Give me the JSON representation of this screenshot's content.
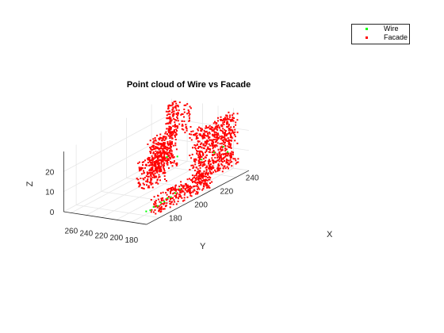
{
  "chart_data": {
    "type": "scatter",
    "projection": "3d",
    "title": "Point cloud of Wire vs Facade",
    "xlabel": "X",
    "ylabel": "Y",
    "zlabel": "Z",
    "xlim": [
      170,
      250
    ],
    "ylim": [
      160,
      270
    ],
    "zlim": [
      0,
      30
    ],
    "xticks": [
      180,
      200,
      220,
      240
    ],
    "yticks": [
      180,
      200,
      220,
      240,
      260
    ],
    "zticks": [
      0,
      10,
      20
    ],
    "grid": true,
    "legend_position": "top-right",
    "series": [
      {
        "name": "Wire",
        "color": "#00ff00",
        "marker": "point",
        "points": [
          {
            "x": 178,
            "y": 174,
            "z": 3
          },
          {
            "x": 180,
            "y": 172,
            "z": 3
          },
          {
            "x": 182,
            "y": 171,
            "z": 4
          },
          {
            "x": 184,
            "y": 169,
            "z": 4
          },
          {
            "x": 186,
            "y": 168,
            "z": 5
          },
          {
            "x": 188,
            "y": 167,
            "z": 5
          },
          {
            "x": 190,
            "y": 166,
            "z": 6
          },
          {
            "x": 192,
            "y": 165,
            "z": 6
          },
          {
            "x": 195,
            "y": 164,
            "z": 7
          },
          {
            "x": 198,
            "y": 163,
            "z": 8
          },
          {
            "x": 205,
            "y": 192,
            "z": 20
          },
          {
            "x": 212,
            "y": 190,
            "z": 18
          },
          {
            "x": 222,
            "y": 175,
            "z": 14
          },
          {
            "x": 230,
            "y": 172,
            "z": 15
          },
          {
            "x": 236,
            "y": 170,
            "z": 16
          },
          {
            "x": 240,
            "y": 171,
            "z": 12
          }
        ]
      },
      {
        "name": "Facade",
        "color": "#ff0000",
        "marker": "point",
        "clusters": [
          {
            "x": [
              245,
              255
            ],
            "y": [
              257,
              261
            ],
            "z": [
              12,
              28
            ],
            "n": 110
          },
          {
            "x": [
              246,
              254
            ],
            "y": [
              241,
              243
            ],
            "z": [
              14,
              28
            ],
            "n": 35
          },
          {
            "x": [
              198,
              216
            ],
            "y": [
              195,
              207
            ],
            "z": [
              12,
              30
            ],
            "n": 320
          },
          {
            "x": [
              186,
              200
            ],
            "y": [
              184,
              200
            ],
            "z": [
              10,
              24
            ],
            "n": 170
          },
          {
            "x": [
              215,
              246
            ],
            "y": [
              166,
              180
            ],
            "z": [
              4,
              30
            ],
            "n": 650
          },
          {
            "x": [
              182,
              226
            ],
            "y": [
              164,
              178
            ],
            "z": [
              0,
              8
            ],
            "n": 280
          }
        ]
      }
    ]
  }
}
